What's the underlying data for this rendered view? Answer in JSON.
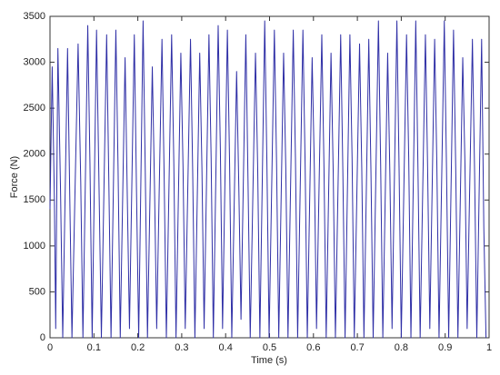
{
  "chart_data": {
    "type": "line",
    "xlabel": "Time (s)",
    "ylabel": "Force (N)",
    "color": "#2f2fa6",
    "xlim": [
      0,
      1
    ],
    "ylim": [
      0,
      3500
    ],
    "xticks": [
      0,
      0.1,
      0.2,
      0.3,
      0.4,
      0.5,
      0.6,
      0.7,
      0.8,
      0.9,
      1
    ],
    "yticks": [
      0,
      500,
      1000,
      1500,
      2000,
      2500,
      3000,
      3500
    ],
    "grid": false,
    "x": [
      0,
      0.005,
      0.01,
      0.013,
      0.018,
      0.024,
      0.029,
      0.04,
      0.045,
      0.05,
      0.064,
      0.07,
      0.075,
      0.086,
      0.091,
      0.096,
      0.106,
      0.111,
      0.117,
      0.129,
      0.134,
      0.139,
      0.15,
      0.155,
      0.16,
      0.171,
      0.176,
      0.181,
      0.192,
      0.197,
      0.202,
      0.212,
      0.217,
      0.222,
      0.233,
      0.238,
      0.243,
      0.255,
      0.26,
      0.265,
      0.277,
      0.282,
      0.287,
      0.298,
      0.303,
      0.308,
      0.32,
      0.325,
      0.33,
      0.341,
      0.346,
      0.351,
      0.362,
      0.367,
      0.372,
      0.383,
      0.388,
      0.393,
      0.404,
      0.409,
      0.414,
      0.425,
      0.43,
      0.435,
      0.446,
      0.451,
      0.456,
      0.468,
      0.473,
      0.478,
      0.489,
      0.494,
      0.499,
      0.511,
      0.516,
      0.521,
      0.532,
      0.537,
      0.542,
      0.554,
      0.559,
      0.564,
      0.576,
      0.581,
      0.586,
      0.597,
      0.602,
      0.607,
      0.619,
      0.624,
      0.629,
      0.64,
      0.645,
      0.65,
      0.662,
      0.667,
      0.672,
      0.683,
      0.688,
      0.693,
      0.705,
      0.71,
      0.715,
      0.726,
      0.731,
      0.736,
      0.748,
      0.753,
      0.758,
      0.769,
      0.774,
      0.779,
      0.79,
      0.795,
      0.8,
      0.812,
      0.817,
      0.822,
      0.833,
      0.838,
      0.843,
      0.855,
      0.86,
      0.865,
      0.876,
      0.881,
      0.886,
      0.898,
      0.903,
      0.908,
      0.919,
      0.924,
      0.929,
      0.94,
      0.945,
      0.95,
      0.962,
      0.967,
      0.972,
      0.983,
      0.988,
      0.993
    ],
    "values": [
      1400,
      2950,
      1500,
      100,
      3150,
      1600,
      0,
      3150,
      1550,
      0,
      3200,
      1700,
      0,
      3400,
      1900,
      0,
      3350,
      1850,
      0,
      3300,
      1700,
      0,
      3350,
      1850,
      0,
      3050,
      1550,
      100,
      3300,
      1600,
      0,
      3450,
      1800,
      0,
      2950,
      1650,
      100,
      3250,
      1750,
      0,
      3300,
      1900,
      0,
      3100,
      1850,
      100,
      3250,
      1800,
      0,
      3100,
      1850,
      100,
      3300,
      1950,
      0,
      3400,
      2050,
      100,
      3350,
      1900,
      0,
      2900,
      1650,
      200,
      3300,
      1700,
      0,
      3100,
      1850,
      0,
      3450,
      1900,
      0,
      3350,
      1900,
      0,
      3100,
      1850,
      0,
      3350,
      1950,
      0,
      3350,
      1900,
      0,
      3050,
      1850,
      100,
      3300,
      1850,
      0,
      3100,
      1800,
      0,
      3300,
      1800,
      0,
      3300,
      1950,
      0,
      3200,
      1850,
      0,
      3250,
      1800,
      0,
      3450,
      1900,
      0,
      3100,
      1800,
      100,
      3450,
      1850,
      0,
      3300,
      1950,
      0,
      3450,
      1850,
      0,
      3300,
      1850,
      100,
      3250,
      1900,
      0,
      3450,
      1850,
      0,
      3350,
      1850,
      0,
      3050,
      1900,
      100,
      3250,
      1800,
      0,
      3250,
      1200,
      0
    ]
  }
}
